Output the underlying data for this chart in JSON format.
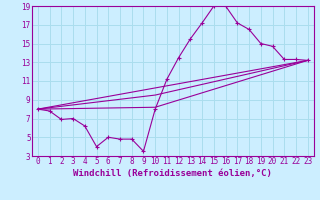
{
  "xlabel": "Windchill (Refroidissement éolien,°C)",
  "xlim": [
    -0.5,
    23.5
  ],
  "ylim": [
    3,
    19
  ],
  "xticks": [
    0,
    1,
    2,
    3,
    4,
    5,
    6,
    7,
    8,
    9,
    10,
    11,
    12,
    13,
    14,
    15,
    16,
    17,
    18,
    19,
    20,
    21,
    22,
    23
  ],
  "yticks": [
    3,
    5,
    7,
    9,
    11,
    13,
    15,
    17,
    19
  ],
  "bg_color": "#cceeff",
  "grid_color": "#aaddee",
  "line_color": "#990099",
  "line1_x": [
    0,
    1,
    2,
    3,
    4,
    5,
    6,
    7,
    8,
    9,
    10,
    11,
    12,
    13,
    14,
    15,
    16,
    17,
    18,
    19,
    20,
    21,
    22,
    23
  ],
  "line1_y": [
    8.0,
    7.8,
    6.9,
    7.0,
    6.2,
    4.0,
    5.0,
    4.8,
    4.8,
    3.5,
    8.0,
    11.2,
    13.5,
    15.5,
    17.2,
    19.0,
    19.0,
    17.2,
    16.5,
    15.0,
    14.7,
    13.3,
    13.3,
    13.2
  ],
  "line2_x": [
    0,
    23
  ],
  "line2_y": [
    8.0,
    13.2
  ],
  "line3_x": [
    0,
    10,
    23
  ],
  "line3_y": [
    8.0,
    8.2,
    13.2
  ],
  "line4_x": [
    0,
    10,
    23
  ],
  "line4_y": [
    8.0,
    9.5,
    13.2
  ],
  "fontsize_label": 6.5,
  "fontsize_tick": 5.5
}
